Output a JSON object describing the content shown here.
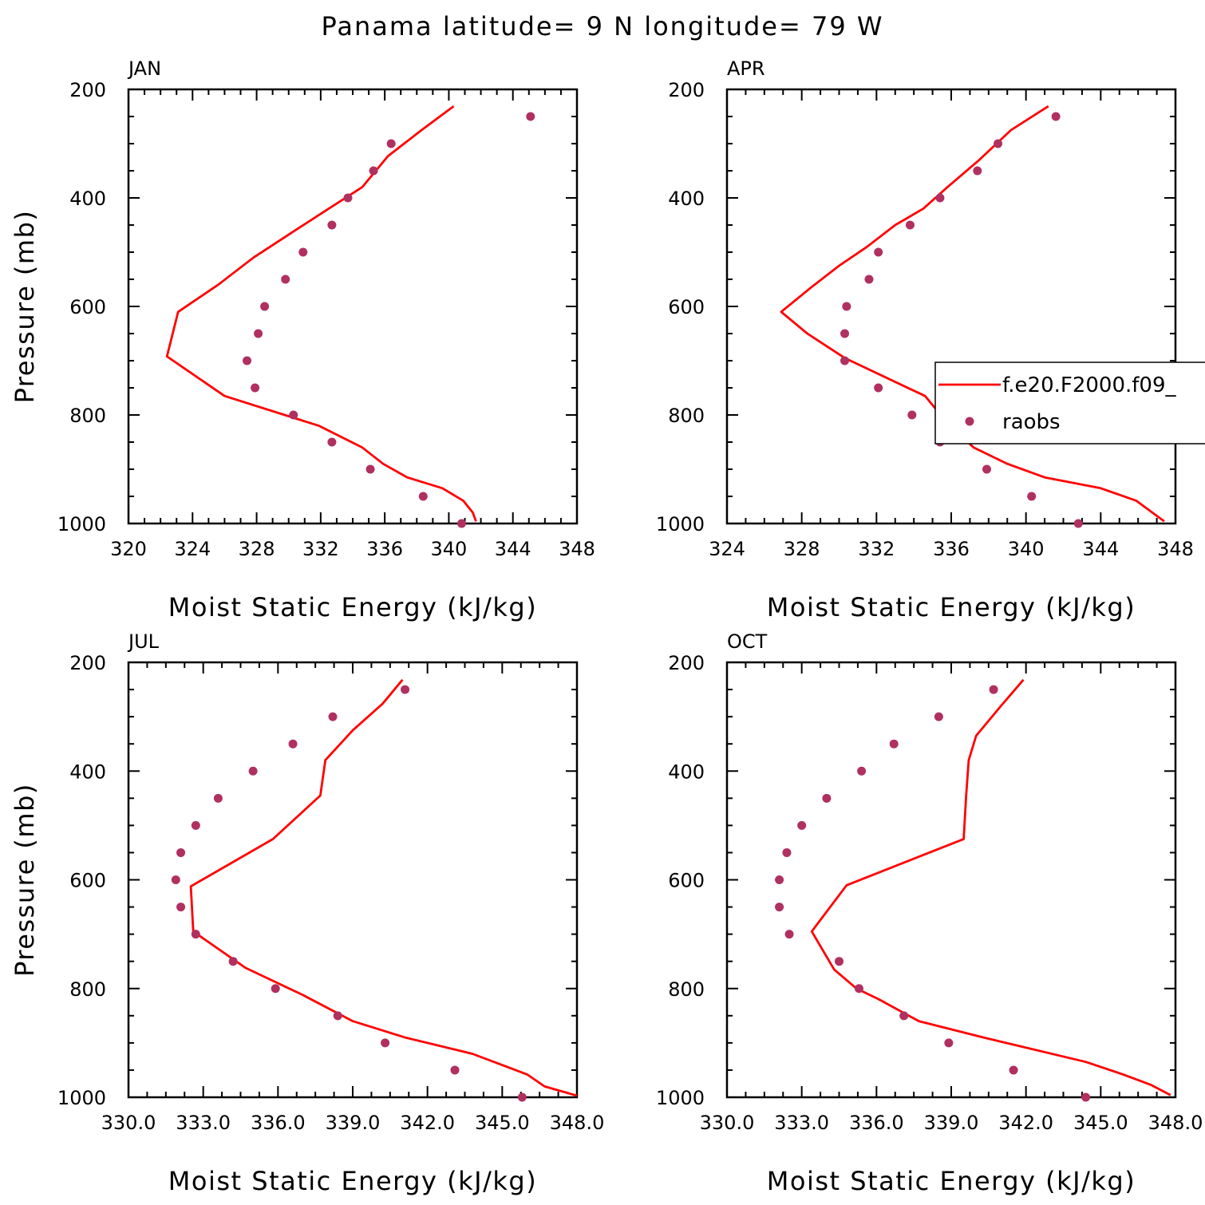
{
  "title": "Panama  latitude= 9 N longitude= 79 W",
  "legend": {
    "panel": "APR",
    "model_label": "f.e20.F2000.f09_",
    "obs_label": "raobs"
  },
  "colors": {
    "model": "#ff0000",
    "obs": "#b03060"
  },
  "chart_data": [
    {
      "type": "line",
      "title": "JAN",
      "xlabel": "Moist Static Energy (kJ/kg)",
      "ylabel": "Pressure (mb)",
      "xlim": [
        320,
        348
      ],
      "xticks": [
        "320",
        "324",
        "328",
        "332",
        "336",
        "340",
        "344",
        "348"
      ],
      "ylim": [
        200,
        1000
      ],
      "yticks": [
        "200",
        "400",
        "600",
        "800",
        "1000"
      ],
      "series": [
        {
          "name": "f.e20.F2000.f09_",
          "kind": "line",
          "x": [
            340.3,
            338.3,
            336.2,
            334.6,
            332.6,
            330.4,
            327.8,
            325.6,
            323.1,
            322.4,
            326.0,
            331.9,
            334.6,
            335.9,
            337.4,
            339.6,
            340.9,
            341.5,
            341.7
          ],
          "y": [
            231,
            275,
            323,
            380,
            418,
            460,
            510,
            560,
            610,
            692,
            765,
            820,
            860,
            890,
            915,
            935,
            958,
            980,
            996
          ]
        },
        {
          "name": "raobs",
          "kind": "scatter",
          "x": [
            345.1,
            336.4,
            335.3,
            333.7,
            332.7,
            330.9,
            329.8,
            328.5,
            328.1,
            327.4,
            327.9,
            330.3,
            332.7,
            335.1,
            338.4,
            340.8
          ],
          "y": [
            250,
            300,
            350,
            400,
            450,
            500,
            550,
            600,
            650,
            700,
            750,
            800,
            850,
            900,
            950,
            1000
          ]
        }
      ]
    },
    {
      "type": "line",
      "title": "APR",
      "xlabel": "Moist Static Energy (kJ/kg)",
      "ylabel": "",
      "xlim": [
        324,
        348
      ],
      "xticks": [
        "324",
        "328",
        "332",
        "336",
        "340",
        "344",
        "348"
      ],
      "ylim": [
        200,
        1000
      ],
      "yticks": [
        "200",
        "400",
        "600",
        "800",
        "1000"
      ],
      "series": [
        {
          "name": "f.e20.F2000.f09_",
          "kind": "line",
          "x": [
            341.2,
            339.2,
            337.5,
            335.8,
            334.5,
            333.0,
            331.5,
            330.0,
            328.5,
            326.9,
            328.3,
            330.3,
            334.6,
            335.8,
            337.2,
            339.0,
            341.0,
            344.0,
            345.9,
            347.4
          ],
          "y": [
            231,
            275,
            330,
            380,
            420,
            450,
            490,
            525,
            565,
            610,
            650,
            695,
            765,
            815,
            860,
            890,
            915,
            935,
            958,
            996
          ]
        },
        {
          "name": "raobs",
          "kind": "scatter",
          "x": [
            341.6,
            338.5,
            337.4,
            335.4,
            333.8,
            332.1,
            331.6,
            330.4,
            330.3,
            330.3,
            332.1,
            333.9,
            335.4,
            337.9,
            340.3,
            342.8
          ],
          "y": [
            250,
            300,
            350,
            400,
            450,
            500,
            550,
            600,
            650,
            700,
            750,
            800,
            850,
            900,
            950,
            1000
          ]
        }
      ]
    },
    {
      "type": "line",
      "title": "JUL",
      "xlabel": "Moist Static Energy (kJ/kg)",
      "ylabel": "Pressure (mb)",
      "xlim": [
        330,
        348
      ],
      "xticks": [
        "330.0",
        "333.0",
        "336.0",
        "339.0",
        "342.0",
        "345.0",
        "348.0"
      ],
      "ylim": [
        200,
        1000
      ],
      "yticks": [
        "200",
        "400",
        "600",
        "800",
        "1000"
      ],
      "series": [
        {
          "name": "f.e20.F2000.f09_",
          "kind": "line",
          "x": [
            341.0,
            340.2,
            339.0,
            337.9,
            337.7,
            335.8,
            332.5,
            332.6,
            334.7,
            337.0,
            339.0,
            341.1,
            343.8,
            346.0,
            346.7,
            348.0
          ],
          "y": [
            232,
            276,
            325,
            380,
            445,
            525,
            612,
            695,
            762,
            812,
            860,
            890,
            920,
            958,
            980,
            997
          ]
        },
        {
          "name": "raobs",
          "kind": "scatter",
          "x": [
            341.1,
            338.2,
            336.6,
            335.0,
            333.6,
            332.7,
            332.1,
            331.9,
            332.1,
            332.7,
            334.2,
            335.9,
            338.4,
            340.3,
            343.1,
            345.8
          ],
          "y": [
            250,
            300,
            350,
            400,
            450,
            500,
            550,
            600,
            650,
            700,
            750,
            800,
            850,
            900,
            950,
            1000
          ]
        }
      ]
    },
    {
      "type": "line",
      "title": "OCT",
      "xlabel": "Moist Static Energy (kJ/kg)",
      "ylabel": "",
      "xlim": [
        330,
        348
      ],
      "xticks": [
        "330.0",
        "333.0",
        "336.0",
        "339.0",
        "342.0",
        "345.0",
        "348.0"
      ],
      "ylim": [
        200,
        1000
      ],
      "yticks": [
        "200",
        "400",
        "600",
        "800",
        "1000"
      ],
      "series": [
        {
          "name": "f.e20.F2000.f09_",
          "kind": "line",
          "x": [
            341.9,
            341.0,
            340.0,
            339.7,
            339.6,
            339.5,
            334.8,
            333.4,
            334.3,
            335.2,
            336.1,
            337.7,
            340.3,
            344.4,
            345.9,
            347.0,
            347.8
          ],
          "y": [
            232,
            280,
            335,
            380,
            445,
            525,
            610,
            695,
            765,
            800,
            820,
            860,
            890,
            935,
            958,
            977,
            996
          ]
        },
        {
          "name": "raobs",
          "kind": "scatter",
          "x": [
            340.7,
            338.5,
            336.7,
            335.4,
            334.0,
            333.0,
            332.4,
            332.1,
            332.1,
            332.5,
            334.5,
            335.3,
            337.1,
            338.9,
            341.5,
            344.4
          ],
          "y": [
            250,
            300,
            350,
            400,
            450,
            500,
            550,
            600,
            650,
            700,
            750,
            800,
            850,
            900,
            950,
            1000
          ]
        }
      ]
    }
  ]
}
